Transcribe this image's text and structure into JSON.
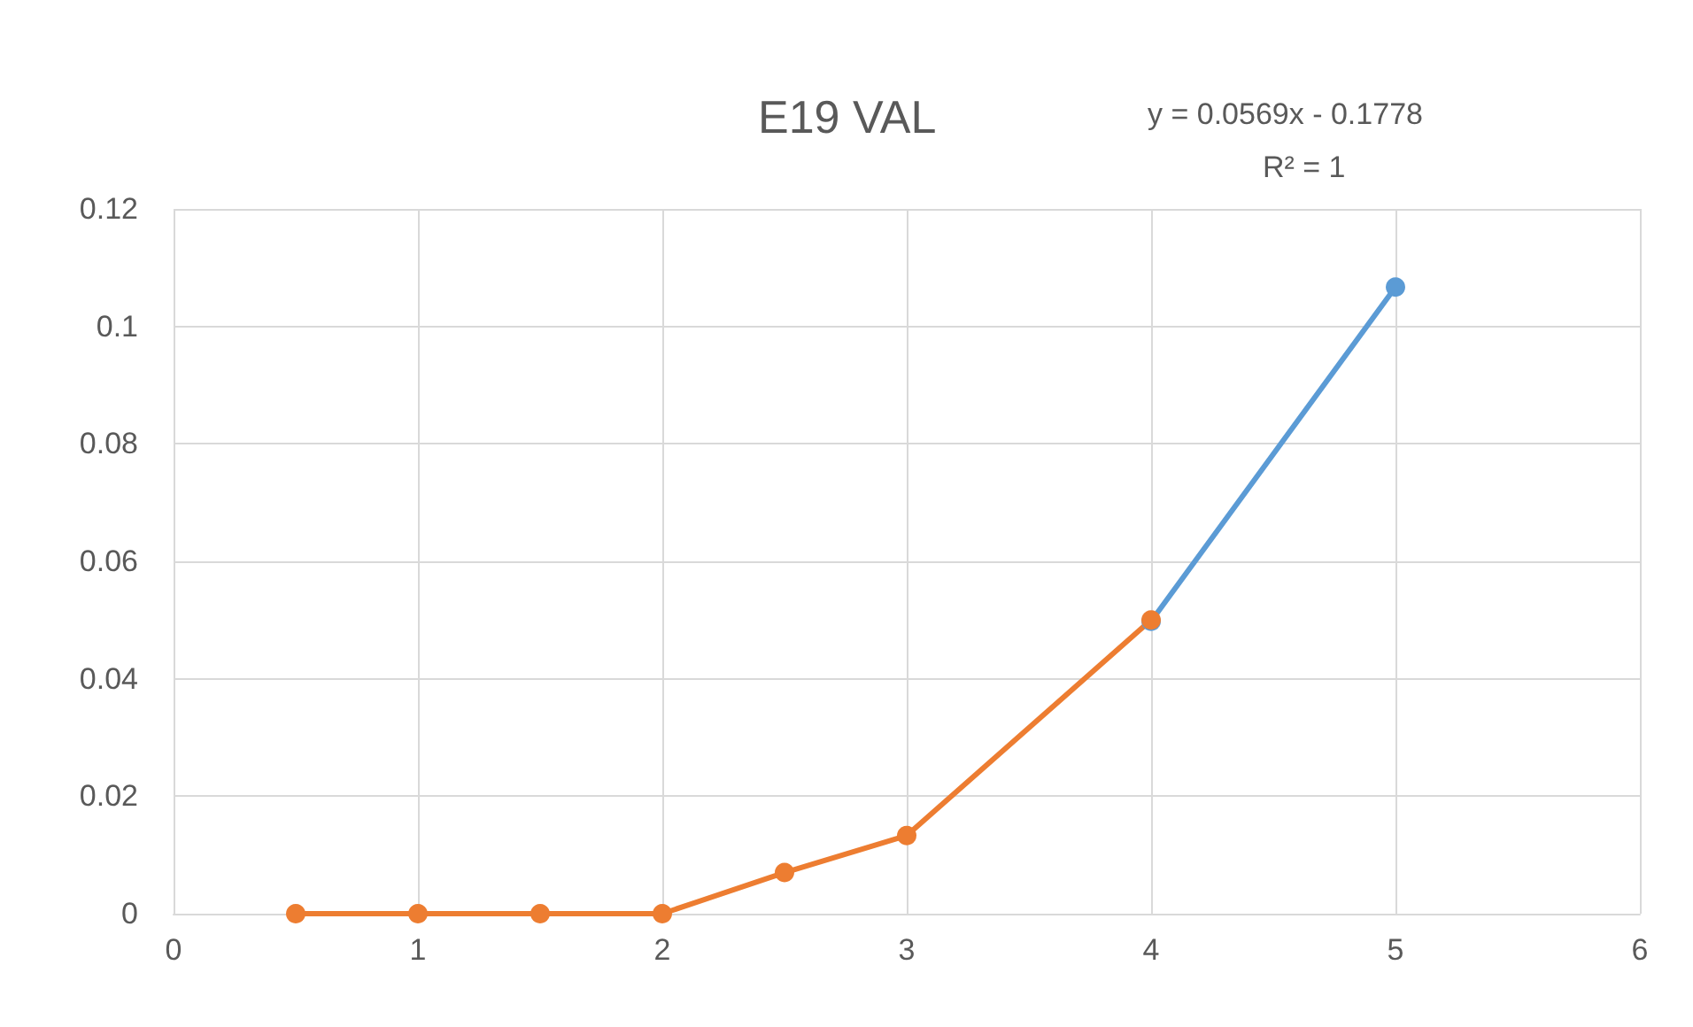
{
  "chart_data": {
    "type": "line",
    "title": "E19 VAL",
    "annotations": [
      "y = 0.0569x - 0.1778",
      "R² = 1"
    ],
    "series": [
      {
        "color": "#5b9bd5",
        "x": [
          4,
          5
        ],
        "values": [
          0.0498,
          0.1067
        ]
      },
      {
        "color": "#ed7d31",
        "x": [
          0.5,
          1,
          1.5,
          2,
          2.5,
          3,
          4
        ],
        "values": [
          0,
          0,
          0,
          0,
          0.007,
          0.0133,
          0.05
        ]
      }
    ],
    "xlim": [
      0,
      6
    ],
    "xticks": [
      0,
      1,
      2,
      3,
      4,
      5,
      6
    ],
    "ylim": [
      0,
      0.12
    ],
    "yticks": [
      0,
      0.02,
      0.04,
      0.06,
      0.08,
      0.1,
      0.12
    ],
    "grid": true,
    "marker": "circle",
    "line_style": "solid"
  }
}
